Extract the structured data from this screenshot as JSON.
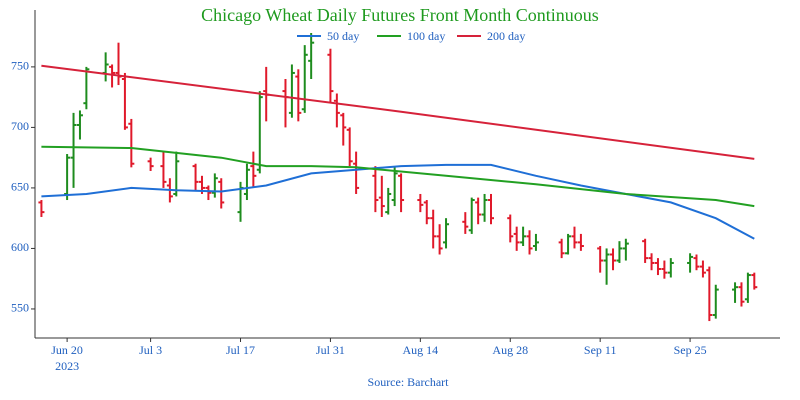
{
  "chart_data": {
    "type": "ohlc",
    "title": "Chicago Wheat Daily Futures Front Month Continuous",
    "source": "Source: Barchart",
    "up_color": "#1e8c1e",
    "down_color": "#e0192a",
    "xlim": [
      "2023-06-15",
      "2023-10-09"
    ],
    "xticks": [
      {
        "value": "2023-06-20",
        "label": "Jun 20",
        "sublabel": "2023"
      },
      {
        "value": "2023-07-03",
        "label": "Jul 3"
      },
      {
        "value": "2023-07-17",
        "label": "Jul 17"
      },
      {
        "value": "2023-07-31",
        "label": "Jul 31"
      },
      {
        "value": "2023-08-14",
        "label": "Aug 14"
      },
      {
        "value": "2023-08-28",
        "label": "Aug 28"
      },
      {
        "value": "2023-09-11",
        "label": "Sep 11"
      },
      {
        "value": "2023-09-25",
        "label": "Sep 25"
      }
    ],
    "ylim": [
      526,
      797
    ],
    "yticks": [
      550,
      600,
      650,
      700,
      750
    ],
    "grid": false,
    "x": [
      "2023-06-16",
      "2023-06-20",
      "2023-06-21",
      "2023-06-22",
      "2023-06-23",
      "2023-06-26",
      "2023-06-27",
      "2023-06-28",
      "2023-06-29",
      "2023-06-30",
      "2023-07-03",
      "2023-07-05",
      "2023-07-06",
      "2023-07-07",
      "2023-07-10",
      "2023-07-11",
      "2023-07-12",
      "2023-07-13",
      "2023-07-14",
      "2023-07-17",
      "2023-07-18",
      "2023-07-19",
      "2023-07-20",
      "2023-07-21",
      "2023-07-24",
      "2023-07-25",
      "2023-07-26",
      "2023-07-27",
      "2023-07-28",
      "2023-07-31",
      "2023-08-01",
      "2023-08-02",
      "2023-08-03",
      "2023-08-04",
      "2023-08-07",
      "2023-08-08",
      "2023-08-09",
      "2023-08-10",
      "2023-08-11",
      "2023-08-14",
      "2023-08-15",
      "2023-08-16",
      "2023-08-17",
      "2023-08-18",
      "2023-08-21",
      "2023-08-22",
      "2023-08-23",
      "2023-08-24",
      "2023-08-25",
      "2023-08-28",
      "2023-08-29",
      "2023-08-30",
      "2023-08-31",
      "2023-09-01",
      "2023-09-05",
      "2023-09-06",
      "2023-09-07",
      "2023-09-08",
      "2023-09-11",
      "2023-09-12",
      "2023-09-13",
      "2023-09-14",
      "2023-09-15",
      "2023-09-18",
      "2023-09-19",
      "2023-09-20",
      "2023-09-21",
      "2023-09-22",
      "2023-09-25",
      "2023-09-26",
      "2023-09-27",
      "2023-09-28",
      "2023-09-29",
      "2023-10-02",
      "2023-10-03",
      "2023-10-04",
      "2023-10-05"
    ],
    "open": [
      638,
      645,
      675,
      702,
      720,
      745,
      750,
      745,
      740,
      703,
      672,
      668,
      652,
      645,
      668,
      655,
      650,
      646,
      655,
      630,
      645,
      668,
      665,
      730,
      730,
      712,
      742,
      715,
      755,
      760,
      722,
      710,
      698,
      670,
      660,
      642,
      630,
      640,
      660,
      640,
      638,
      625,
      610,
      605,
      622,
      615,
      638,
      628,
      640,
      625,
      612,
      605,
      610,
      602,
      605,
      596,
      610,
      605,
      600,
      590,
      595,
      590,
      600,
      606,
      592,
      588,
      583,
      580,
      588,
      592,
      585,
      582,
      545,
      566,
      568,
      558,
      578
    ],
    "high": [
      640,
      678,
      712,
      714,
      750,
      762,
      752,
      770,
      745,
      707,
      675,
      680,
      658,
      680,
      670,
      660,
      652,
      662,
      658,
      655,
      670,
      680,
      730,
      750,
      740,
      752,
      748,
      768,
      778,
      765,
      728,
      712,
      700,
      680,
      668,
      660,
      650,
      668,
      662,
      645,
      640,
      632,
      620,
      625,
      630,
      642,
      642,
      645,
      645,
      628,
      618,
      618,
      615,
      612,
      608,
      612,
      618,
      612,
      602,
      600,
      600,
      606,
      608,
      608,
      596,
      592,
      590,
      592,
      596,
      595,
      590,
      585,
      570,
      572,
      572,
      580,
      580
    ],
    "low": [
      626,
      640,
      650,
      690,
      715,
      738,
      733,
      735,
      698,
      667,
      664,
      650,
      638,
      643,
      648,
      645,
      640,
      642,
      633,
      622,
      640,
      650,
      662,
      705,
      700,
      708,
      705,
      712,
      740,
      720,
      700,
      685,
      668,
      645,
      630,
      626,
      628,
      635,
      630,
      630,
      620,
      600,
      595,
      600,
      612,
      612,
      620,
      622,
      620,
      605,
      598,
      602,
      595,
      598,
      592,
      595,
      600,
      598,
      580,
      570,
      582,
      588,
      590,
      588,
      582,
      578,
      575,
      576,
      580,
      582,
      576,
      540,
      542,
      555,
      552,
      555,
      566
    ],
    "close": [
      630,
      675,
      702,
      710,
      748,
      752,
      745,
      742,
      700,
      670,
      668,
      655,
      643,
      672,
      655,
      650,
      646,
      658,
      638,
      650,
      665,
      660,
      725,
      727,
      725,
      745,
      712,
      760,
      770,
      730,
      712,
      700,
      672,
      650,
      640,
      635,
      645,
      662,
      640,
      636,
      625,
      610,
      600,
      620,
      618,
      640,
      628,
      640,
      625,
      610,
      605,
      610,
      600,
      605,
      596,
      610,
      605,
      602,
      590,
      595,
      590,
      600,
      604,
      592,
      588,
      583,
      580,
      588,
      593,
      585,
      580,
      545,
      566,
      568,
      556,
      578,
      568
    ],
    "lines": [
      {
        "name": "50 day",
        "color": "#1f6fd6",
        "x": [
          "2023-06-16",
          "2023-06-23",
          "2023-06-30",
          "2023-07-07",
          "2023-07-14",
          "2023-07-21",
          "2023-07-28",
          "2023-08-04",
          "2023-08-11",
          "2023-08-18",
          "2023-08-25",
          "2023-09-01",
          "2023-09-08",
          "2023-09-15",
          "2023-09-22",
          "2023-09-29",
          "2023-10-05"
        ],
        "values": [
          643,
          645,
          650,
          648,
          647,
          652,
          662,
          665,
          668,
          669,
          669,
          660,
          652,
          645,
          638,
          625,
          608
        ]
      },
      {
        "name": "100 day",
        "color": "#22a022",
        "x": [
          "2023-06-16",
          "2023-06-30",
          "2023-07-14",
          "2023-07-21",
          "2023-07-28",
          "2023-08-04",
          "2023-08-18",
          "2023-09-01",
          "2023-09-15",
          "2023-09-29",
          "2023-10-05"
        ],
        "values": [
          684,
          683,
          675,
          668,
          668,
          667,
          660,
          653,
          645,
          640,
          635
        ]
      },
      {
        "name": "200 day",
        "color": "#d6223a",
        "x": [
          "2023-06-16",
          "2023-08-11",
          "2023-10-05"
        ],
        "values": [
          751,
          713,
          674
        ]
      }
    ]
  }
}
